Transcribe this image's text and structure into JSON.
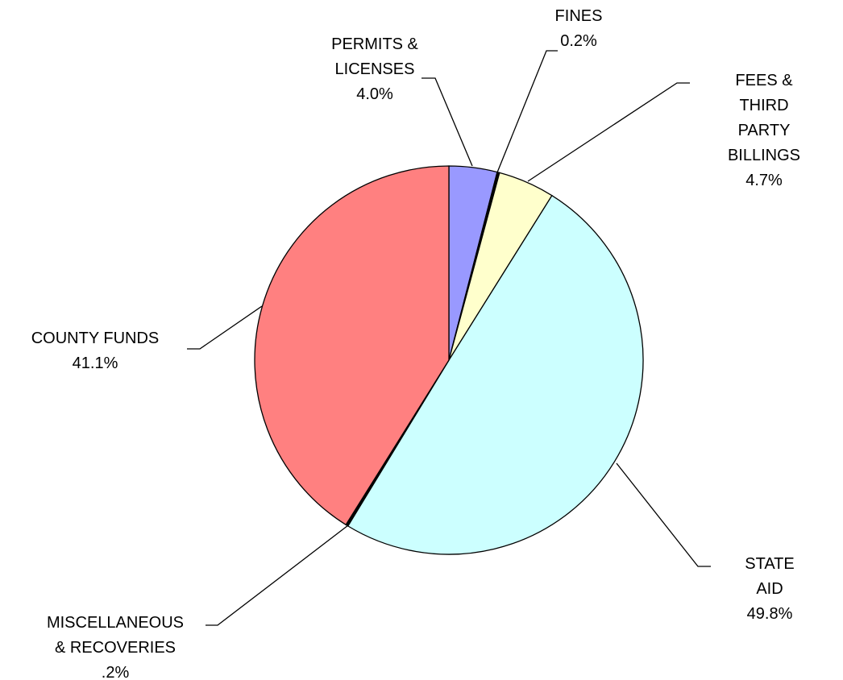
{
  "chart_data": {
    "type": "pie",
    "categories": [
      "PERMITS &\nLICENSES",
      "FINES",
      "FEES & THIRD\nPARTY\nBILLINGS",
      "STATE AID",
      "MISCELLANEOUS\n& RECOVERIES",
      "COUNTY FUNDS"
    ],
    "values": [
      4.0,
      0.2,
      4.7,
      49.8,
      0.2,
      41.1
    ],
    "value_labels": [
      "4.0%",
      "0.2%",
      "4.7%",
      "49.8%",
      ".2%",
      "41.1%"
    ],
    "colors": [
      "#9999ff",
      "#000000",
      "#ffffcc",
      "#ccffff",
      "#000000",
      "#ff8080"
    ]
  }
}
